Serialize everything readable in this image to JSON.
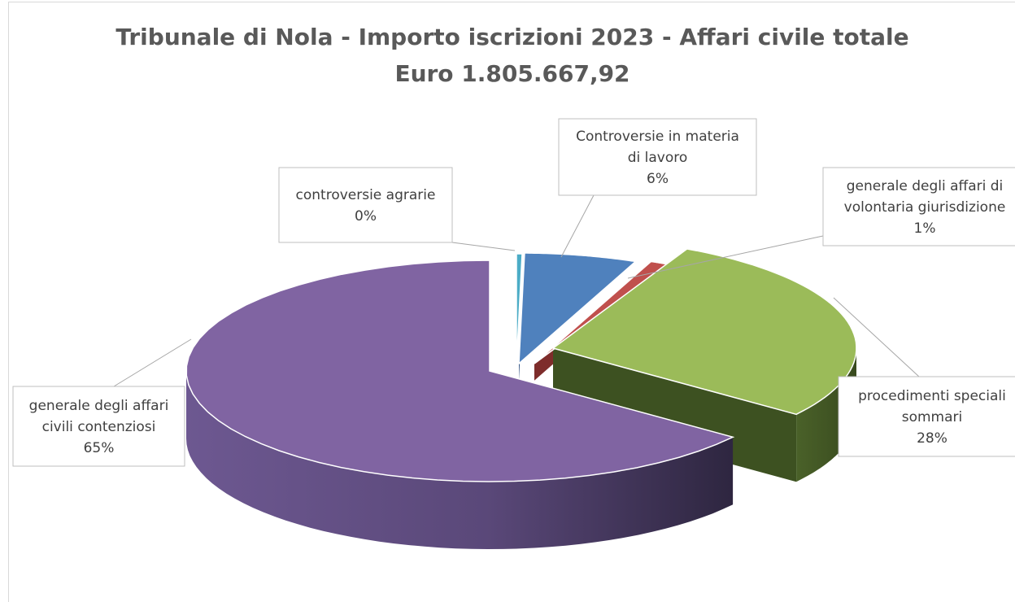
{
  "chart_data": {
    "type": "pie",
    "title": "Tribunale di Nola - Importo iscrizioni 2023 - Affari civile totale",
    "subtitle": "Euro 1.805.667,92",
    "slices": [
      {
        "key": "agrarie",
        "label_lines": [
          "controversie agrarie"
        ],
        "percent_text": "0%",
        "value": 0.3,
        "color": "#4bacc6"
      },
      {
        "key": "lavoro",
        "label_lines": [
          "Controversie in materia",
          "di lavoro"
        ],
        "percent_text": "6%",
        "value": 6,
        "color": "#4f81bd"
      },
      {
        "key": "volontaria",
        "label_lines": [
          "generale degli affari di",
          "volontaria giurisdizione"
        ],
        "percent_text": "1%",
        "value": 1,
        "color": "#c0504d"
      },
      {
        "key": "speciali",
        "label_lines": [
          "procedimenti speciali",
          "sommari"
        ],
        "percent_text": "28%",
        "value": 28,
        "color": "#9bbb59"
      },
      {
        "key": "contenziosi",
        "label_lines": [
          "generale degli affari",
          "civili contenziosi"
        ],
        "percent_text": "65%",
        "value": 65,
        "color": "#8064a2"
      }
    ]
  }
}
